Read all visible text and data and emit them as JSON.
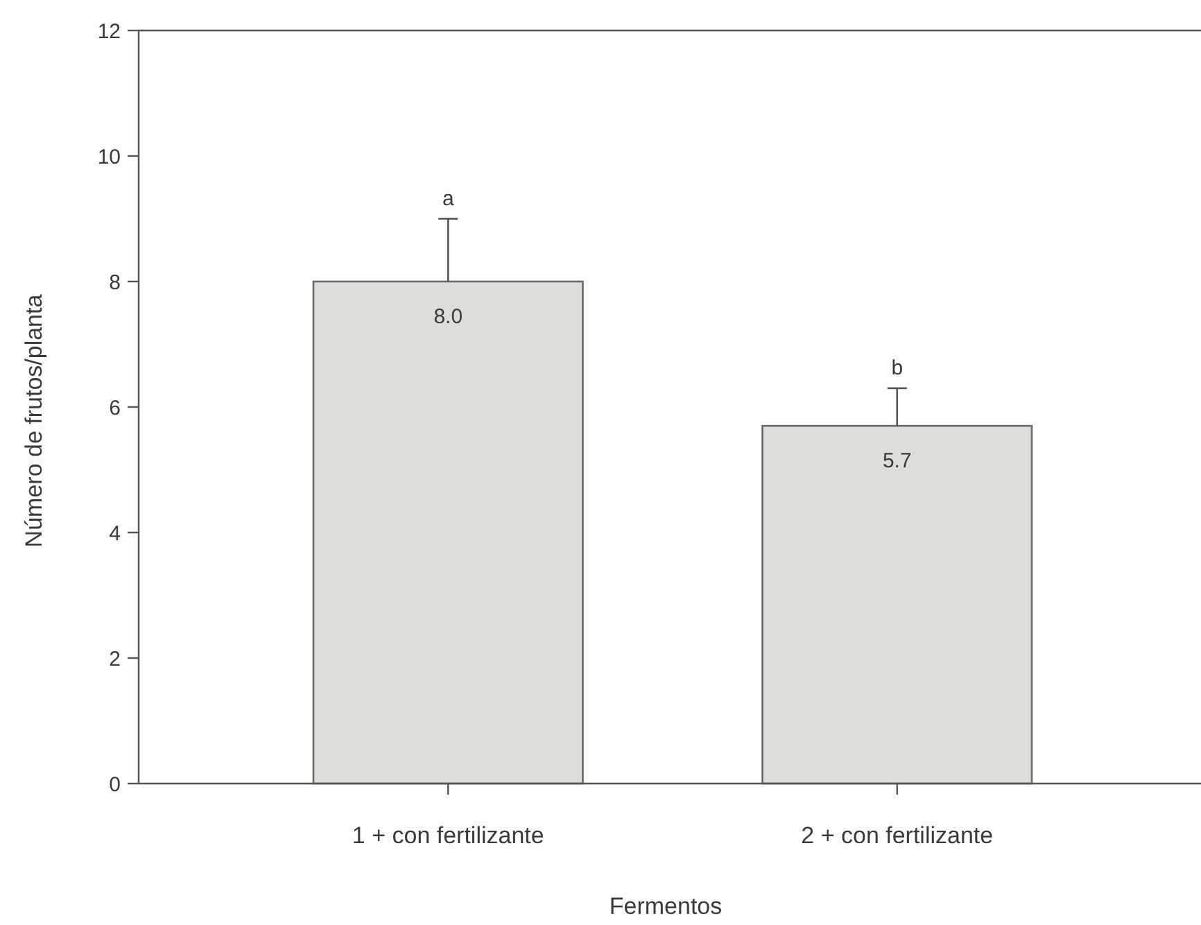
{
  "chart_data": {
    "type": "bar",
    "xlabel": "Fermentos",
    "ylabel": "Número de frutos/planta",
    "categories": [
      "1 + con fertilizante",
      "2 + con fertilizante"
    ],
    "values": [
      8.0,
      5.7
    ],
    "color": "#dcdeda",
    "errors": [
      [
        8.0,
        9.0
      ],
      [
        5.7,
        6.3
      ]
    ],
    "value_labels": [
      "8.0",
      "5.7"
    ],
    "ylim": [
      0,
      12
    ],
    "yticks": [
      0,
      2,
      4,
      6,
      8,
      10,
      12
    ],
    "annotations": [
      {
        "text": "a",
        "x": "1 + con fertilizante",
        "y": 9.0
      },
      {
        "text": "b",
        "x": "2 + con fertilizante",
        "y": 6.3
      }
    ]
  }
}
